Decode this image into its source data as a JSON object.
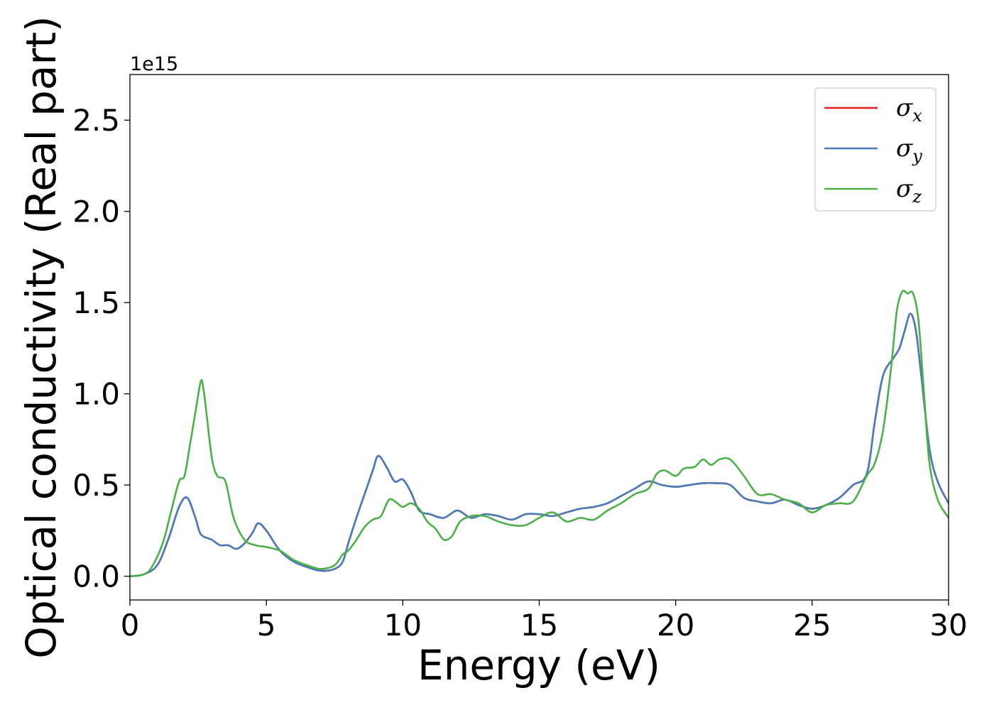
{
  "chart_data": {
    "type": "line",
    "xlabel": "Energy (eV)",
    "ylabel": "Optical conductivity (Real part)",
    "y_offset_text": "1e15",
    "xlim": [
      0,
      30
    ],
    "ylim": [
      -0.13,
      2.75
    ],
    "xticks": [
      0,
      5,
      10,
      15,
      20,
      25,
      30
    ],
    "xtick_labels": [
      "0",
      "5",
      "10",
      "15",
      "20",
      "25",
      "30"
    ],
    "yticks": [
      0.0,
      0.5,
      1.0,
      1.5,
      2.0,
      2.5
    ],
    "ytick_labels": [
      "0.0",
      "0.5",
      "1.0",
      "1.5",
      "2.0",
      "2.5"
    ],
    "grid": false,
    "legend_position": "top-right",
    "series": [
      {
        "name": "σx",
        "sym": "σ",
        "sub": "x",
        "color": "#e41a1c",
        "x": [
          0,
          0.5,
          1,
          1.4,
          1.8,
          2.1,
          2.4,
          2.6,
          3,
          3.3,
          3.6,
          3.9,
          4.2,
          4.5,
          4.7,
          5,
          5.5,
          6,
          6.5,
          7,
          7.5,
          7.8,
          8,
          8.3,
          8.6,
          8.9,
          9.1,
          9.4,
          9.7,
          10,
          10.3,
          10.6,
          11,
          11.5,
          12,
          12.5,
          13,
          13.5,
          14,
          14.5,
          15,
          15.5,
          16,
          16.5,
          17,
          17.5,
          18,
          18.5,
          19,
          19.5,
          20,
          20.5,
          21,
          21.5,
          22,
          22.5,
          23,
          23.5,
          24,
          24.5,
          25,
          25.5,
          26,
          26.5,
          27,
          27.3,
          27.6,
          28,
          28.2,
          28.4,
          28.6,
          28.8,
          29,
          29.3,
          29.6,
          30
        ],
        "values": [
          0,
          0.01,
          0.06,
          0.2,
          0.38,
          0.43,
          0.32,
          0.23,
          0.2,
          0.17,
          0.17,
          0.15,
          0.18,
          0.24,
          0.29,
          0.25,
          0.14,
          0.08,
          0.05,
          0.03,
          0.04,
          0.08,
          0.18,
          0.32,
          0.45,
          0.58,
          0.66,
          0.6,
          0.52,
          0.53,
          0.46,
          0.36,
          0.34,
          0.32,
          0.36,
          0.32,
          0.34,
          0.33,
          0.31,
          0.34,
          0.34,
          0.33,
          0.35,
          0.37,
          0.38,
          0.4,
          0.44,
          0.48,
          0.52,
          0.5,
          0.49,
          0.5,
          0.51,
          0.51,
          0.5,
          0.43,
          0.41,
          0.4,
          0.42,
          0.39,
          0.37,
          0.39,
          0.43,
          0.5,
          0.56,
          0.85,
          1.1,
          1.2,
          1.25,
          1.35,
          1.44,
          1.35,
          1.1,
          0.7,
          0.52,
          0.4
        ]
      },
      {
        "name": "σy",
        "sym": "σ",
        "sub": "y",
        "color": "#4a7db8",
        "x": [
          0,
          0.5,
          1,
          1.4,
          1.8,
          2.1,
          2.4,
          2.6,
          3,
          3.3,
          3.6,
          3.9,
          4.2,
          4.5,
          4.7,
          5,
          5.5,
          6,
          6.5,
          7,
          7.5,
          7.8,
          8,
          8.3,
          8.6,
          8.9,
          9.1,
          9.4,
          9.7,
          10,
          10.3,
          10.6,
          11,
          11.5,
          12,
          12.5,
          13,
          13.5,
          14,
          14.5,
          15,
          15.5,
          16,
          16.5,
          17,
          17.5,
          18,
          18.5,
          19,
          19.5,
          20,
          20.5,
          21,
          21.5,
          22,
          22.5,
          23,
          23.5,
          24,
          24.5,
          25,
          25.5,
          26,
          26.5,
          27,
          27.3,
          27.6,
          28,
          28.2,
          28.4,
          28.6,
          28.8,
          29,
          29.3,
          29.6,
          30
        ],
        "values": [
          0,
          0.01,
          0.06,
          0.2,
          0.38,
          0.43,
          0.32,
          0.23,
          0.2,
          0.17,
          0.17,
          0.15,
          0.18,
          0.24,
          0.29,
          0.25,
          0.14,
          0.08,
          0.05,
          0.03,
          0.04,
          0.08,
          0.18,
          0.32,
          0.45,
          0.58,
          0.66,
          0.6,
          0.52,
          0.53,
          0.46,
          0.36,
          0.34,
          0.32,
          0.36,
          0.32,
          0.34,
          0.33,
          0.31,
          0.34,
          0.34,
          0.33,
          0.35,
          0.37,
          0.38,
          0.4,
          0.44,
          0.48,
          0.52,
          0.5,
          0.49,
          0.5,
          0.51,
          0.51,
          0.5,
          0.43,
          0.41,
          0.4,
          0.42,
          0.39,
          0.37,
          0.39,
          0.43,
          0.5,
          0.56,
          0.85,
          1.1,
          1.2,
          1.25,
          1.35,
          1.44,
          1.35,
          1.1,
          0.7,
          0.52,
          0.4
        ]
      },
      {
        "name": "σz",
        "sym": "σ",
        "sub": "z",
        "color": "#4daf4a",
        "x": [
          0,
          0.5,
          0.8,
          1.2,
          1.5,
          1.8,
          2,
          2.2,
          2.4,
          2.6,
          2.7,
          2.8,
          3,
          3.2,
          3.5,
          3.8,
          4.2,
          4.6,
          5,
          5.5,
          6,
          6.5,
          7,
          7.5,
          7.8,
          8,
          8.3,
          8.6,
          8.9,
          9.2,
          9.5,
          9.8,
          10,
          10.3,
          10.6,
          10.9,
          11.2,
          11.5,
          11.8,
          12.1,
          12.5,
          13,
          13.5,
          14,
          14.5,
          15,
          15.5,
          16,
          16.5,
          17,
          17.5,
          18,
          18.5,
          19,
          19.3,
          19.6,
          20,
          20.3,
          20.7,
          21,
          21.3,
          21.6,
          22,
          22.5,
          23,
          23.5,
          24,
          24.5,
          25,
          25.5,
          26,
          26.5,
          27,
          27.3,
          27.6,
          27.9,
          28.1,
          28.3,
          28.5,
          28.7,
          28.9,
          29.1,
          29.3,
          29.6,
          30
        ],
        "values": [
          0,
          0.01,
          0.05,
          0.18,
          0.35,
          0.52,
          0.55,
          0.72,
          0.9,
          1.07,
          1.02,
          0.9,
          0.65,
          0.55,
          0.52,
          0.32,
          0.2,
          0.17,
          0.16,
          0.14,
          0.09,
          0.06,
          0.04,
          0.06,
          0.12,
          0.14,
          0.2,
          0.27,
          0.31,
          0.33,
          0.42,
          0.4,
          0.38,
          0.4,
          0.37,
          0.3,
          0.26,
          0.2,
          0.22,
          0.3,
          0.33,
          0.33,
          0.3,
          0.28,
          0.28,
          0.32,
          0.35,
          0.3,
          0.32,
          0.31,
          0.36,
          0.4,
          0.45,
          0.48,
          0.56,
          0.58,
          0.55,
          0.59,
          0.6,
          0.64,
          0.61,
          0.64,
          0.64,
          0.55,
          0.45,
          0.45,
          0.42,
          0.4,
          0.35,
          0.39,
          0.4,
          0.41,
          0.55,
          0.62,
          0.8,
          1.15,
          1.45,
          1.56,
          1.55,
          1.55,
          1.4,
          1.0,
          0.62,
          0.42,
          0.32
        ]
      }
    ]
  }
}
